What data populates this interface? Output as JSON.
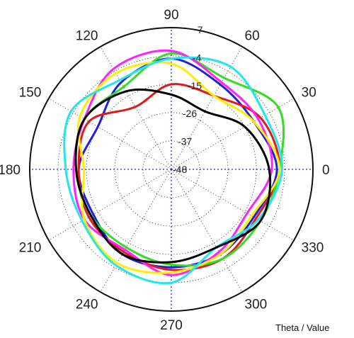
{
  "chart_data": {
    "type": "line",
    "subtype": "polar",
    "title": "",
    "footer_label": "Theta / Value",
    "angle_ticks": [
      "0",
      "30",
      "60",
      "90",
      "120",
      "150",
      "180",
      "210",
      "240",
      "270",
      "300",
      "330"
    ],
    "angle_tick_degrees": [
      0,
      30,
      60,
      90,
      120,
      150,
      180,
      210,
      240,
      270,
      300,
      330
    ],
    "radial_tick_labels": [
      "-48",
      "-37",
      "-26",
      "-15",
      "-4",
      "7"
    ],
    "radial_tick_values": [
      -48,
      -37,
      -26,
      -15,
      -4,
      7
    ],
    "rlim": [
      -48,
      7
    ],
    "grid": true,
    "theta_deg": [
      0,
      30,
      60,
      90,
      120,
      150,
      180,
      210,
      240,
      270,
      300,
      330
    ],
    "series": [
      {
        "color": "#1f1fe0",
        "r": [
          -7,
          -11,
          -10,
          -5,
          -9,
          -15,
          -12,
          -13,
          -10,
          -10,
          -10,
          -11
        ]
      },
      {
        "color": "#e01a1a",
        "r": [
          -6,
          -8,
          -15,
          -15,
          -20,
          -11,
          -12,
          -11,
          -11,
          -9,
          -8,
          -10
        ]
      },
      {
        "color": "#33dd22",
        "r": [
          -6,
          0,
          -7,
          -3,
          -11,
          -9,
          -11,
          -12,
          -13,
          -11,
          -8,
          -8
        ]
      },
      {
        "color": "#ff22ff",
        "r": [
          -9,
          -9,
          -9,
          -2,
          -3,
          -9,
          -10,
          -9,
          -12,
          -7,
          -11,
          -14
        ]
      },
      {
        "color": "#ffee00",
        "r": [
          -6,
          -11,
          -15,
          -7,
          -5,
          -7,
          -14,
          -9,
          -6,
          -8,
          -10,
          -12
        ]
      },
      {
        "color": "#22e5ee",
        "r": [
          -5,
          -6,
          -2,
          -5,
          -8,
          -3,
          -7,
          -8,
          -5,
          -4,
          -13,
          -9
        ]
      },
      {
        "color": "#000000",
        "r": [
          -10,
          -15,
          -22,
          -19,
          -13,
          -9,
          -11,
          -12,
          -10,
          -12,
          -13,
          -8
        ]
      }
    ]
  }
}
